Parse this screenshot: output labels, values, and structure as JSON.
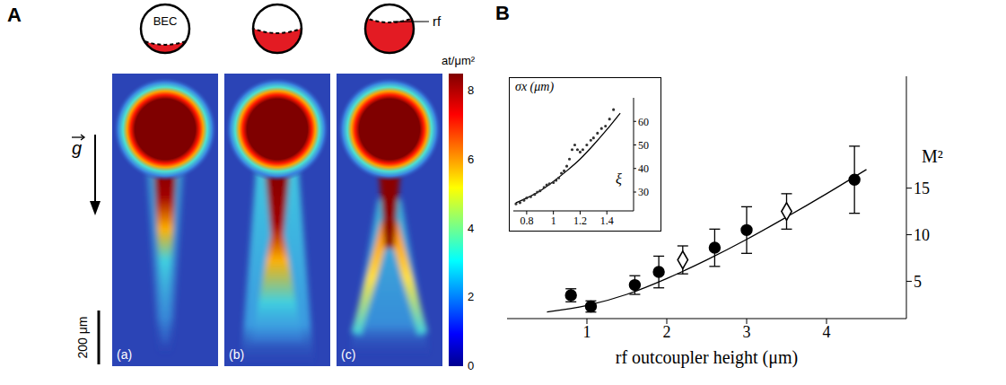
{
  "panel_a": {
    "letter": "A",
    "schematic_label": "BEC",
    "rf_label": "rf",
    "gravity_label": "g",
    "scale_bar_label": "200 μm",
    "images": [
      "(a)",
      "(b)",
      "(c)"
    ],
    "colorbar": {
      "label": "at/μm²",
      "range": [
        0,
        8.5
      ],
      "ticks": [
        0,
        2,
        4,
        6,
        8
      ]
    }
  },
  "panel_b": {
    "letter": "B"
  },
  "chart_data": [
    {
      "type": "scatter",
      "x_label": "rf outcoupler height (μm)",
      "y_label": "M²",
      "xlim": [
        0,
        5
      ],
      "xticks": [
        1,
        2,
        3,
        4
      ],
      "ylim": [
        1,
        27
      ],
      "yticks": [
        5,
        10,
        15
      ],
      "series": [
        {
          "type": "scatter",
          "marker": "circle",
          "color": "#000000",
          "x": [
            0.8,
            1.05,
            1.6,
            1.9,
            2.6,
            3.0,
            4.35
          ],
          "values": [
            3.5,
            2.3,
            4.6,
            6.0,
            8.6,
            10.5,
            15.9
          ],
          "errors": [
            0.7,
            0.6,
            1.0,
            1.7,
            2.0,
            2.5,
            3.6
          ]
        },
        {
          "type": "scatter",
          "marker": "diamond",
          "color": "#000000",
          "x": [
            2.2,
            3.5
          ],
          "values": [
            7.3,
            12.5
          ],
          "errors": [
            1.5,
            1.9
          ]
        },
        {
          "type": "line",
          "color": "#000000",
          "x": [
            0.5,
            1,
            1.5,
            2,
            2.5,
            3,
            3.5,
            4,
            4.5
          ],
          "values": [
            1.7,
            2.4,
            3.6,
            5.3,
            7.3,
            9.5,
            11.9,
            14.4,
            17.0
          ]
        }
      ]
    },
    {
      "type": "scatter",
      "x_label": "ξ",
      "y_label": "σx (μm)",
      "xlim": [
        0.7,
        1.6
      ],
      "xticks": [
        0.8,
        1,
        1.2,
        1.4
      ],
      "ylim": [
        22,
        70
      ],
      "yticks": [
        30,
        40,
        50,
        60
      ],
      "series": [
        {
          "type": "scatter",
          "marker": "circle",
          "color": "#333333",
          "x": [
            0.72,
            0.75,
            0.78,
            0.8,
            0.83,
            0.86,
            0.88,
            0.9,
            0.93,
            0.95,
            0.97,
            1.0,
            1.02,
            1.04,
            1.06,
            1.08,
            1.1,
            1.12,
            1.14,
            1.16,
            1.18,
            1.2,
            1.22,
            1.25,
            1.28,
            1.3,
            1.33,
            1.36,
            1.39,
            1.42,
            1.45
          ],
          "values": [
            25,
            25.5,
            26.5,
            27.5,
            28,
            29,
            30,
            30.5,
            32,
            33,
            33.5,
            34,
            35,
            36,
            38,
            39,
            41,
            44,
            48,
            50,
            48,
            47,
            48,
            50,
            52,
            53,
            55,
            57,
            58,
            61,
            65
          ]
        },
        {
          "type": "line",
          "color": "#000000",
          "x": [
            0.72,
            0.8,
            0.9,
            1.0,
            1.1,
            1.2,
            1.3,
            1.4,
            1.5
          ],
          "values": [
            25.5,
            27.5,
            30.5,
            34.5,
            39,
            44,
            50,
            56.5,
            63.5
          ]
        }
      ]
    }
  ]
}
